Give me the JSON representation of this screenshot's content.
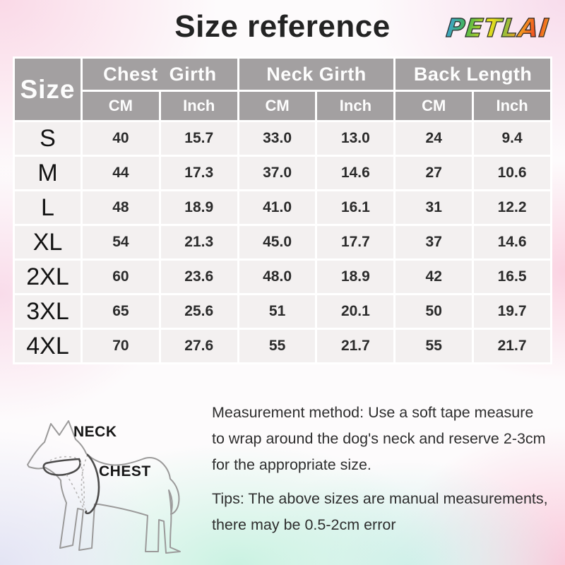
{
  "header": {
    "title": "Size reference",
    "brand": "PETLAI"
  },
  "chart_data": {
    "type": "table",
    "title": "Size reference",
    "size_header": "Size",
    "col_groups": [
      "Chest  Girth",
      "Neck Girth",
      "Back Length"
    ],
    "unit_headers": [
      "CM",
      "Inch",
      "CM",
      "Inch",
      "CM",
      "Inch"
    ],
    "rows": [
      {
        "size": "S",
        "values": [
          "40",
          "15.7",
          "33.0",
          "13.0",
          "24",
          "9.4"
        ]
      },
      {
        "size": "M",
        "values": [
          "44",
          "17.3",
          "37.0",
          "14.6",
          "27",
          "10.6"
        ]
      },
      {
        "size": "L",
        "values": [
          "48",
          "18.9",
          "41.0",
          "16.1",
          "31",
          "12.2"
        ]
      },
      {
        "size": "XL",
        "values": [
          "54",
          "21.3",
          "45.0",
          "17.7",
          "37",
          "14.6"
        ]
      },
      {
        "size": "2XL",
        "values": [
          "60",
          "23.6",
          "48.0",
          "18.9",
          "42",
          "16.5"
        ]
      },
      {
        "size": "3XL",
        "values": [
          "65",
          "25.6",
          "51",
          "20.1",
          "50",
          "19.7"
        ]
      },
      {
        "size": "4XL",
        "values": [
          "70",
          "27.6",
          "55",
          "21.7",
          "55",
          "21.7"
        ]
      }
    ]
  },
  "diagram": {
    "neck_label": "NECK",
    "chest_label": "CHEST"
  },
  "notes": {
    "measurement_lines": [
      "Measurement method: Use a soft tape measure",
      "to wrap around the dog's neck and reserve 2-3cm",
      "for the appropriate size."
    ],
    "tips_lines": [
      "Tips: The above sizes are manual measurements,",
      "there may be 0.5-2cm error"
    ]
  },
  "colors": {
    "header_bg": "#a3a0a1",
    "row_bg": "#f3f0f0",
    "rainbow": [
      "#3aa0e8",
      "#46b64c",
      "#f2e018",
      "#f5a21f",
      "#ef4323"
    ]
  }
}
